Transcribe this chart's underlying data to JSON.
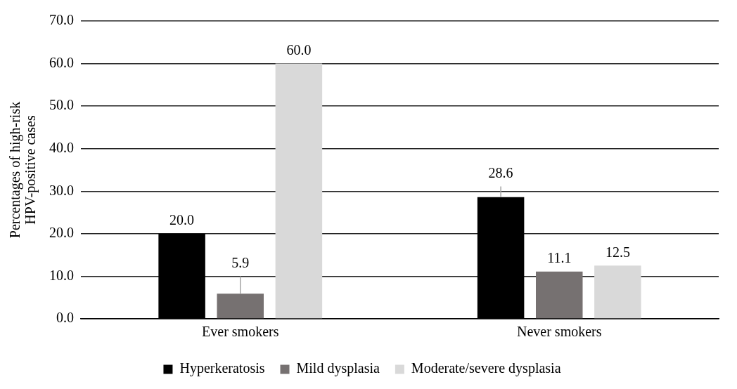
{
  "chart_data": {
    "type": "bar",
    "ylabel": "Percentages of high-risk HPV-positive cases",
    "categories": [
      "Ever smokers",
      "Never smokers"
    ],
    "series": [
      {
        "name": "Hyperkeratosis",
        "color": "#000000",
        "values": [
          20.0,
          28.6
        ],
        "value_labels": [
          "20.0",
          "28.6"
        ],
        "errors": [
          null,
          [
            28.6,
            31.1
          ]
        ]
      },
      {
        "name": "Mild dysplasia",
        "color": "#767171",
        "values": [
          5.9,
          11.1
        ],
        "value_labels": [
          "5.9",
          "11.1"
        ],
        "errors": [
          [
            5.9,
            10.0
          ],
          null
        ]
      },
      {
        "name": "Moderate/severe dysplasia",
        "color": "#d9d9d9",
        "values": [
          60.0,
          12.5
        ],
        "value_labels": [
          "60.0",
          "12.5"
        ]
      }
    ],
    "ylim": [
      0,
      70
    ],
    "yticks": [
      {
        "value": 0,
        "label": "0.0"
      },
      {
        "value": 10,
        "label": "10.0"
      },
      {
        "value": 20,
        "label": "20.0"
      },
      {
        "value": 30,
        "label": "30.0"
      },
      {
        "value": 40,
        "label": "40.0"
      },
      {
        "value": 50,
        "label": "50.0"
      },
      {
        "value": 60,
        "label": "60.0"
      },
      {
        "value": 70,
        "label": "70.0"
      }
    ],
    "grid": "y",
    "legend": "bottom"
  }
}
